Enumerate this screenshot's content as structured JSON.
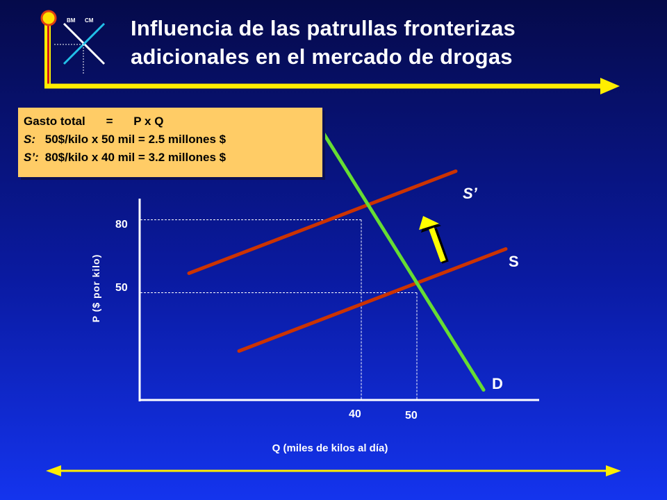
{
  "title": {
    "line1": "Influencia de las patrullas fronterizas",
    "line2": "adicionales en el mercado de drogas"
  },
  "logo": {
    "left_text": "BM",
    "right_text": "CM"
  },
  "info_box": {
    "line1_label": "Gasto total",
    "line1_eq": "=",
    "line1_formula": "P x Q",
    "line2_key": "S:",
    "line2_text": "50$/kilo x 50 mil = 2.5 millones $",
    "line3_key": "S’:",
    "line3_text": "80$/kilo x 40 mil = 3.2 millones $"
  },
  "colors": {
    "supply": "#cc3300",
    "demand": "#66dd33",
    "accent_yellow": "#ffff00",
    "box": "#ffcc66"
  },
  "chart_data": {
    "type": "line",
    "xlabel": "Q (miles de kilos al día)",
    "ylabel": "P ($ por kilo)",
    "x_ticks": [
      "40",
      "50"
    ],
    "y_ticks": [
      "80",
      "50"
    ],
    "series": [
      {
        "name": "S",
        "label": "S",
        "points": [
          [
            18,
            26
          ],
          [
            66,
            68
          ]
        ]
      },
      {
        "name": "S’",
        "label": "S’",
        "points": [
          [
            9,
            58
          ],
          [
            57,
            100
          ]
        ]
      },
      {
        "name": "D",
        "label": "D",
        "points": [
          [
            32,
            120
          ],
          [
            62,
            10
          ]
        ]
      }
    ],
    "equilibria": [
      {
        "q": 50,
        "p": 50
      },
      {
        "q": 40,
        "p": 80
      }
    ],
    "annotation": "shift-arrow-from-S-to-S’"
  }
}
